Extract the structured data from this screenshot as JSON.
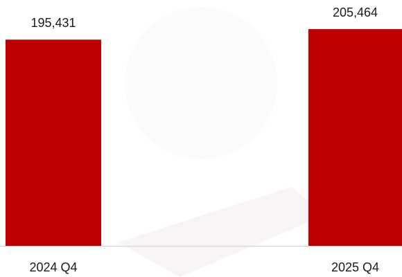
{
  "chart_data": {
    "type": "bar",
    "categories": [
      "2024 Q4",
      "2025 Q4"
    ],
    "values": [
      195431,
      205464
    ],
    "value_labels": [
      "195,431",
      "205,464"
    ],
    "color": "#c00000"
  }
}
